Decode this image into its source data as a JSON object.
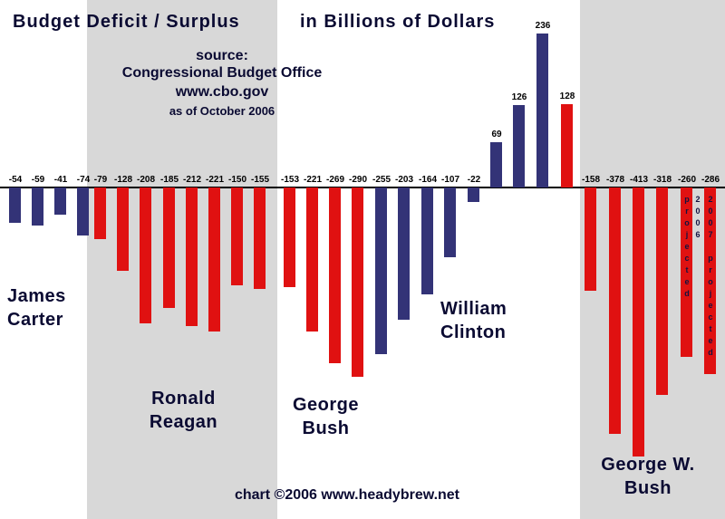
{
  "title": {
    "left": "Budget Deficit / Surplus",
    "right": "in Billions of Dollars"
  },
  "source_block": {
    "line1": "source:",
    "line2": "Congressional Budget Office",
    "line3": "www.cbo.gov",
    "line4": "as of October 2006"
  },
  "footer": {
    "credit": "chart ©2006 www.headybrew.net"
  },
  "colors": {
    "democrat_bar": "#333377",
    "republican_bar": "#e01111",
    "band_gray": "#d8d8d8",
    "background": "#ffffff",
    "axis_line": "#000000",
    "heading_text": "#0a0a32",
    "value_text": "#000000",
    "projection_text": "#131340"
  },
  "chart_data": {
    "type": "bar",
    "title": "Budget Deficit / Surplus in Billions of Dollars",
    "ylabel": "Billions of Dollars",
    "source": "Congressional Budget Office, www.cbo.gov, as of October 2006",
    "zero_baseline": true,
    "grid": false,
    "legend": false,
    "groups": [
      {
        "president": "James Carter",
        "label_lines": [
          "James",
          "Carter"
        ],
        "bar_color": "#333377",
        "band_color": "#ffffff",
        "values": [
          -54,
          -59,
          -41,
          -74
        ]
      },
      {
        "president": "Ronald Reagan",
        "label_lines": [
          "Ronald",
          "Reagan"
        ],
        "bar_color": "#e01111",
        "band_color": "#d8d8d8",
        "values": [
          -79,
          -128,
          -208,
          -185,
          -212,
          -221,
          -150,
          -155
        ]
      },
      {
        "president": "George Bush",
        "label_lines": [
          "George",
          "Bush"
        ],
        "bar_color": "#e01111",
        "band_color": "#ffffff",
        "values": [
          -153,
          -221,
          -269,
          -290
        ]
      },
      {
        "president": "William Clinton",
        "label_lines": [
          "William",
          "Clinton"
        ],
        "bar_color": "#333377",
        "band_color": "#ffffff",
        "values": [
          -255,
          -203,
          -164,
          -107,
          -22,
          69,
          126,
          236
        ]
      },
      {
        "president": "George W. Bush",
        "label_lines": [
          "George W.",
          "Bush"
        ],
        "bar_color": "#e01111",
        "band_color": "#d8d8d8",
        "values": [
          128,
          -158,
          -378,
          -413,
          -318,
          -260,
          -286
        ],
        "bar_notes": [
          null,
          null,
          null,
          null,
          null,
          "2006 projected",
          "2007 projected"
        ]
      }
    ]
  }
}
